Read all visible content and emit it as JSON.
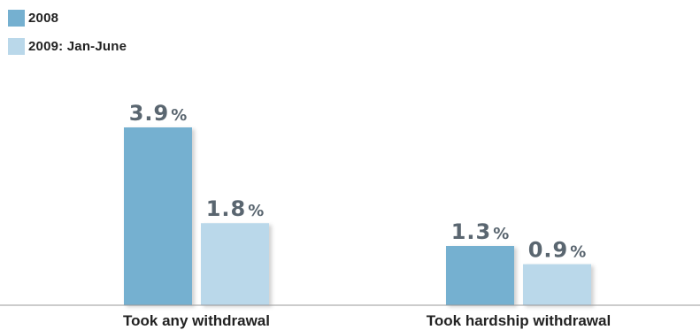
{
  "chart_data": {
    "type": "bar",
    "categories": [
      "Took any withdrawal",
      "Took hardship withdrawal"
    ],
    "series": [
      {
        "name": "2008",
        "values": [
          3.9,
          1.3
        ],
        "labels": [
          "3.9%",
          "1.3%"
        ],
        "color": "#75b0d0"
      },
      {
        "name": "2009: Jan-June",
        "values": [
          1.8,
          0.9
        ],
        "labels": [
          "1.8%",
          "0.9%"
        ],
        "color": "#bad8ea"
      }
    ],
    "title": "",
    "xlabel": "",
    "ylabel": "",
    "ylim": [
      0,
      3.9
    ],
    "grid": false,
    "legend_position": "top-left"
  },
  "colors": {
    "axis": "#999999",
    "label_text": "#5a6670",
    "category_text": "#222222"
  }
}
